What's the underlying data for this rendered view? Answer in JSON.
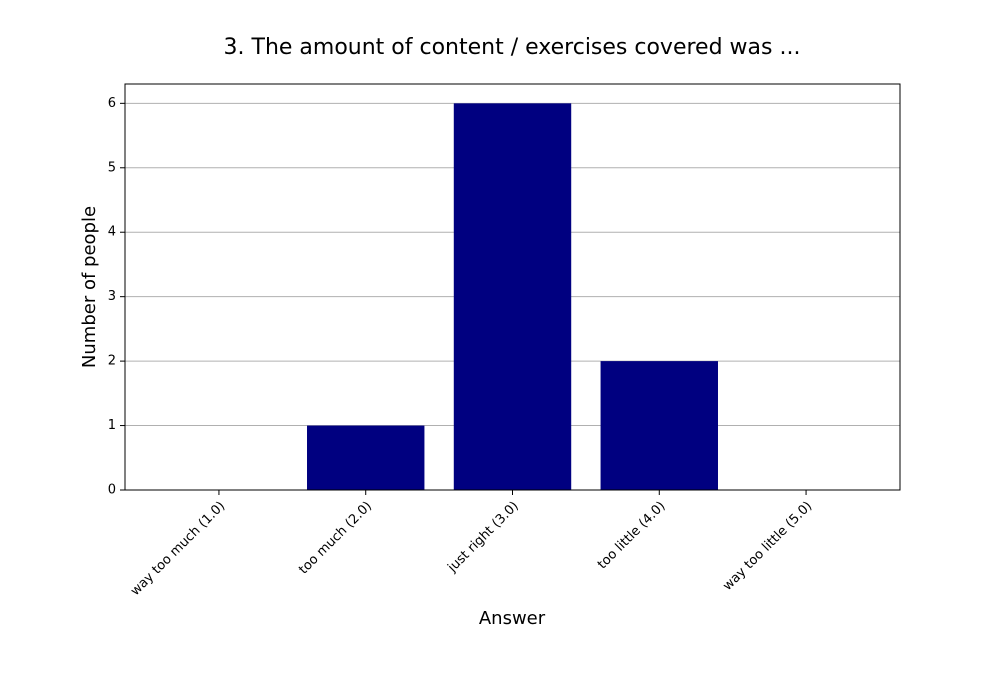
{
  "chart_data": {
    "type": "bar",
    "title": "3. The amount of content / exercises covered was ...",
    "x_label": "Answer",
    "y_label": "Number of people",
    "categories": [
      "way too much (1.0)",
      "too much (2.0)",
      "just right (3.0)",
      "too little (4.0)",
      "way too little (5.0)"
    ],
    "values": [
      0,
      1,
      6,
      2,
      0
    ],
    "color": "#000080",
    "ylim": [
      0,
      6.3
    ],
    "yticks": [
      0,
      1,
      2,
      3,
      4,
      5,
      6
    ],
    "grid": true
  }
}
